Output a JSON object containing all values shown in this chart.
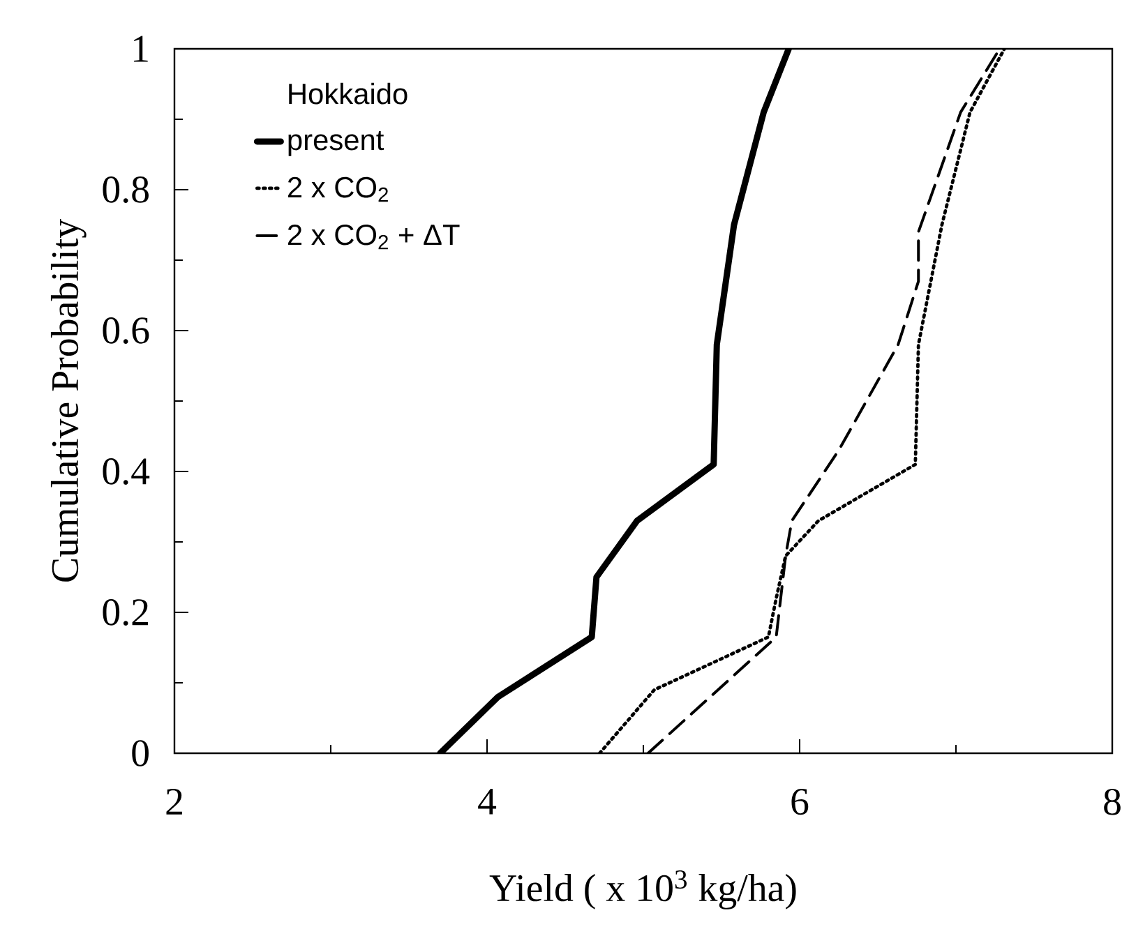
{
  "chart_data": {
    "type": "line",
    "xlabel": "Yield   ( x 10$^{3}$ kg/ha)",
    "ylabel": "Cumulative Probability",
    "legend_title": "Hokkaido",
    "legend": "top left",
    "grid": false,
    "xlim": [
      2,
      8
    ],
    "xticks": [
      2,
      4,
      6,
      8
    ],
    "ylim": [
      0,
      1
    ],
    "yticks": [
      0,
      0.2,
      0.4,
      0.6,
      0.8,
      1
    ],
    "series": [
      {
        "name": "present",
        "color": "#000000",
        "line_style": "solid",
        "x": [
          3.7,
          4.07,
          4.67,
          4.7,
          4.96,
          5.45,
          5.47,
          5.58,
          5.77,
          5.93
        ],
        "values": [
          0,
          0.08,
          0.165,
          0.25,
          0.33,
          0.41,
          0.58,
          0.75,
          0.91,
          1.0
        ]
      },
      {
        "name": "2 x CO$_{2}$",
        "color": "#000000",
        "line_style": "dotted",
        "x": [
          4.72,
          5.07,
          5.8,
          5.85,
          5.91,
          6.12,
          6.74,
          6.76,
          6.91,
          7.09,
          7.31
        ],
        "values": [
          0,
          0.09,
          0.165,
          0.22,
          0.28,
          0.33,
          0.41,
          0.58,
          0.75,
          0.91,
          1.0
        ]
      },
      {
        "name": "2 x CO$_{2}$ + ΔT",
        "color": "#000000",
        "line_style": "dashed",
        "x": [
          5.03,
          5.85,
          5.91,
          5.95,
          6.25,
          6.63,
          6.76,
          6.76,
          7.03,
          7.28
        ],
        "values": [
          0,
          0.165,
          0.28,
          0.33,
          0.43,
          0.58,
          0.67,
          0.74,
          0.91,
          1.0
        ]
      }
    ]
  }
}
